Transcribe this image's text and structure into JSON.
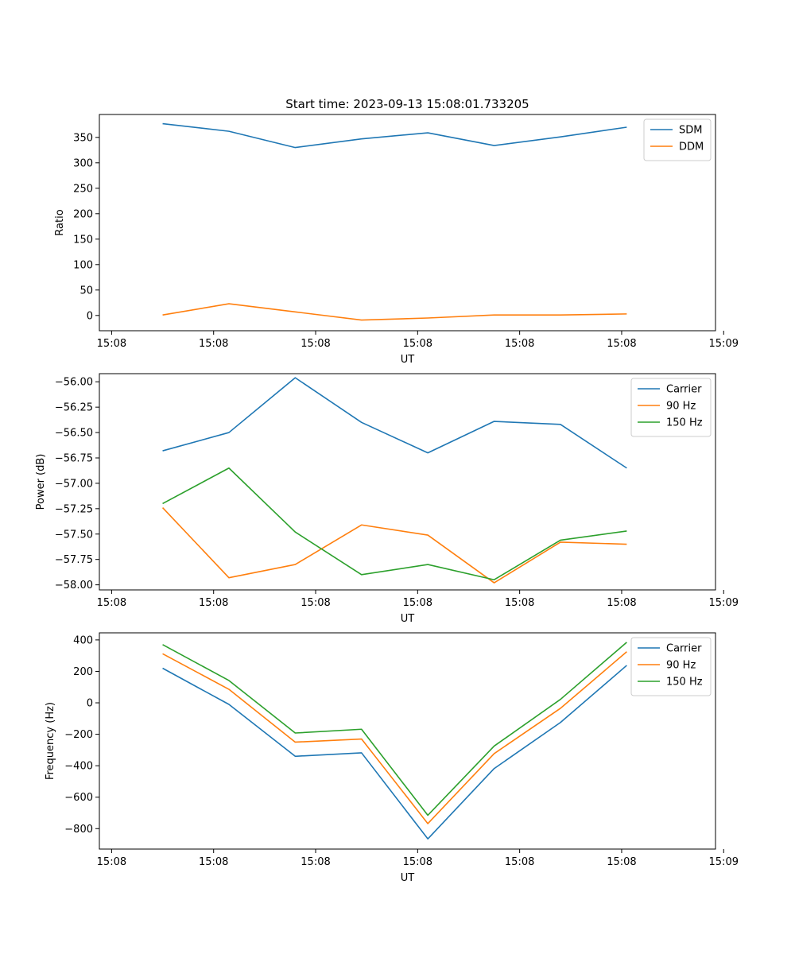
{
  "figure_title": "Start time: 2023-09-13 15:08:01.733205",
  "colors": {
    "blue": "#1f77b4",
    "orange": "#ff7f0e",
    "green": "#2ca02c"
  },
  "chart_data": [
    {
      "type": "line",
      "title": "Start time: 2023-09-13 15:08:01.733205",
      "xlabel": "UT",
      "ylabel": "Ratio",
      "x_tick_labels": [
        "15:08",
        "15:08",
        "15:08",
        "15:08",
        "15:08",
        "15:08",
        "15:09"
      ],
      "y_ticks": [
        0,
        50,
        100,
        150,
        200,
        250,
        300,
        350
      ],
      "ylim": [
        -30,
        395
      ],
      "x_index": [
        0.5,
        1.15,
        1.8,
        2.45,
        3.1,
        3.75,
        4.4,
        5.05
      ],
      "xlim": [
        -0.12,
        5.92
      ],
      "legend_loc": "top-right",
      "series": [
        {
          "name": "SDM",
          "color": "#1f77b4",
          "values": [
            377,
            362,
            330,
            347,
            359,
            334,
            351,
            370
          ]
        },
        {
          "name": "DDM",
          "color": "#ff7f0e",
          "values": [
            1,
            23,
            7,
            -9,
            -5,
            1,
            1,
            3
          ]
        }
      ]
    },
    {
      "type": "line",
      "title": "",
      "xlabel": "UT",
      "ylabel": "Power (dB)",
      "x_tick_labels": [
        "15:08",
        "15:08",
        "15:08",
        "15:08",
        "15:08",
        "15:08",
        "15:09"
      ],
      "y_ticks": [
        -58.0,
        -57.75,
        -57.5,
        -57.25,
        -57.0,
        -56.75,
        -56.5,
        -56.25,
        -56.0
      ],
      "y_tick_labels": [
        "−58.00",
        "−57.75",
        "−57.50",
        "−57.25",
        "−57.00",
        "−56.75",
        "−56.50",
        "−56.25",
        "−56.00"
      ],
      "ylim": [
        -58.05,
        -55.92
      ],
      "x_index": [
        0.5,
        1.15,
        1.8,
        2.45,
        3.1,
        3.75,
        4.4,
        5.05
      ],
      "xlim": [
        -0.12,
        5.92
      ],
      "legend_loc": "top-right",
      "series": [
        {
          "name": "Carrier",
          "color": "#1f77b4",
          "values": [
            -56.68,
            -56.5,
            -55.96,
            -56.4,
            -56.7,
            -56.39,
            -56.42,
            -56.85
          ]
        },
        {
          "name": "90 Hz",
          "color": "#ff7f0e",
          "values": [
            -57.24,
            -57.93,
            -57.8,
            -57.41,
            -57.51,
            -57.98,
            -57.58,
            -57.6
          ]
        },
        {
          "name": "150 Hz",
          "color": "#2ca02c",
          "values": [
            -57.2,
            -56.85,
            -57.48,
            -57.9,
            -57.8,
            -57.95,
            -57.56,
            -57.47
          ]
        }
      ]
    },
    {
      "type": "line",
      "title": "",
      "xlabel": "UT",
      "ylabel": "Frequency (Hz)",
      "x_tick_labels": [
        "15:08",
        "15:08",
        "15:08",
        "15:08",
        "15:08",
        "15:08",
        "15:09"
      ],
      "y_ticks": [
        -800,
        -600,
        -400,
        -200,
        0,
        200,
        400
      ],
      "y_tick_labels": [
        "−800",
        "−600",
        "−400",
        "−200",
        "0",
        "200",
        "400"
      ],
      "ylim": [
        -930,
        445
      ],
      "x_index": [
        0.5,
        1.15,
        1.8,
        2.45,
        3.1,
        3.75,
        4.4,
        5.05
      ],
      "xlim": [
        -0.12,
        5.92
      ],
      "legend_loc": "top-right",
      "series": [
        {
          "name": "Carrier",
          "color": "#1f77b4",
          "values": [
            220,
            -10,
            -340,
            -318,
            -865,
            -418,
            -125,
            238
          ]
        },
        {
          "name": "90 Hz",
          "color": "#ff7f0e",
          "values": [
            312,
            86,
            -250,
            -230,
            -768,
            -323,
            -35,
            325
          ]
        },
        {
          "name": "150 Hz",
          "color": "#2ca02c",
          "values": [
            370,
            142,
            -192,
            -168,
            -715,
            -275,
            22,
            385
          ]
        }
      ]
    }
  ]
}
